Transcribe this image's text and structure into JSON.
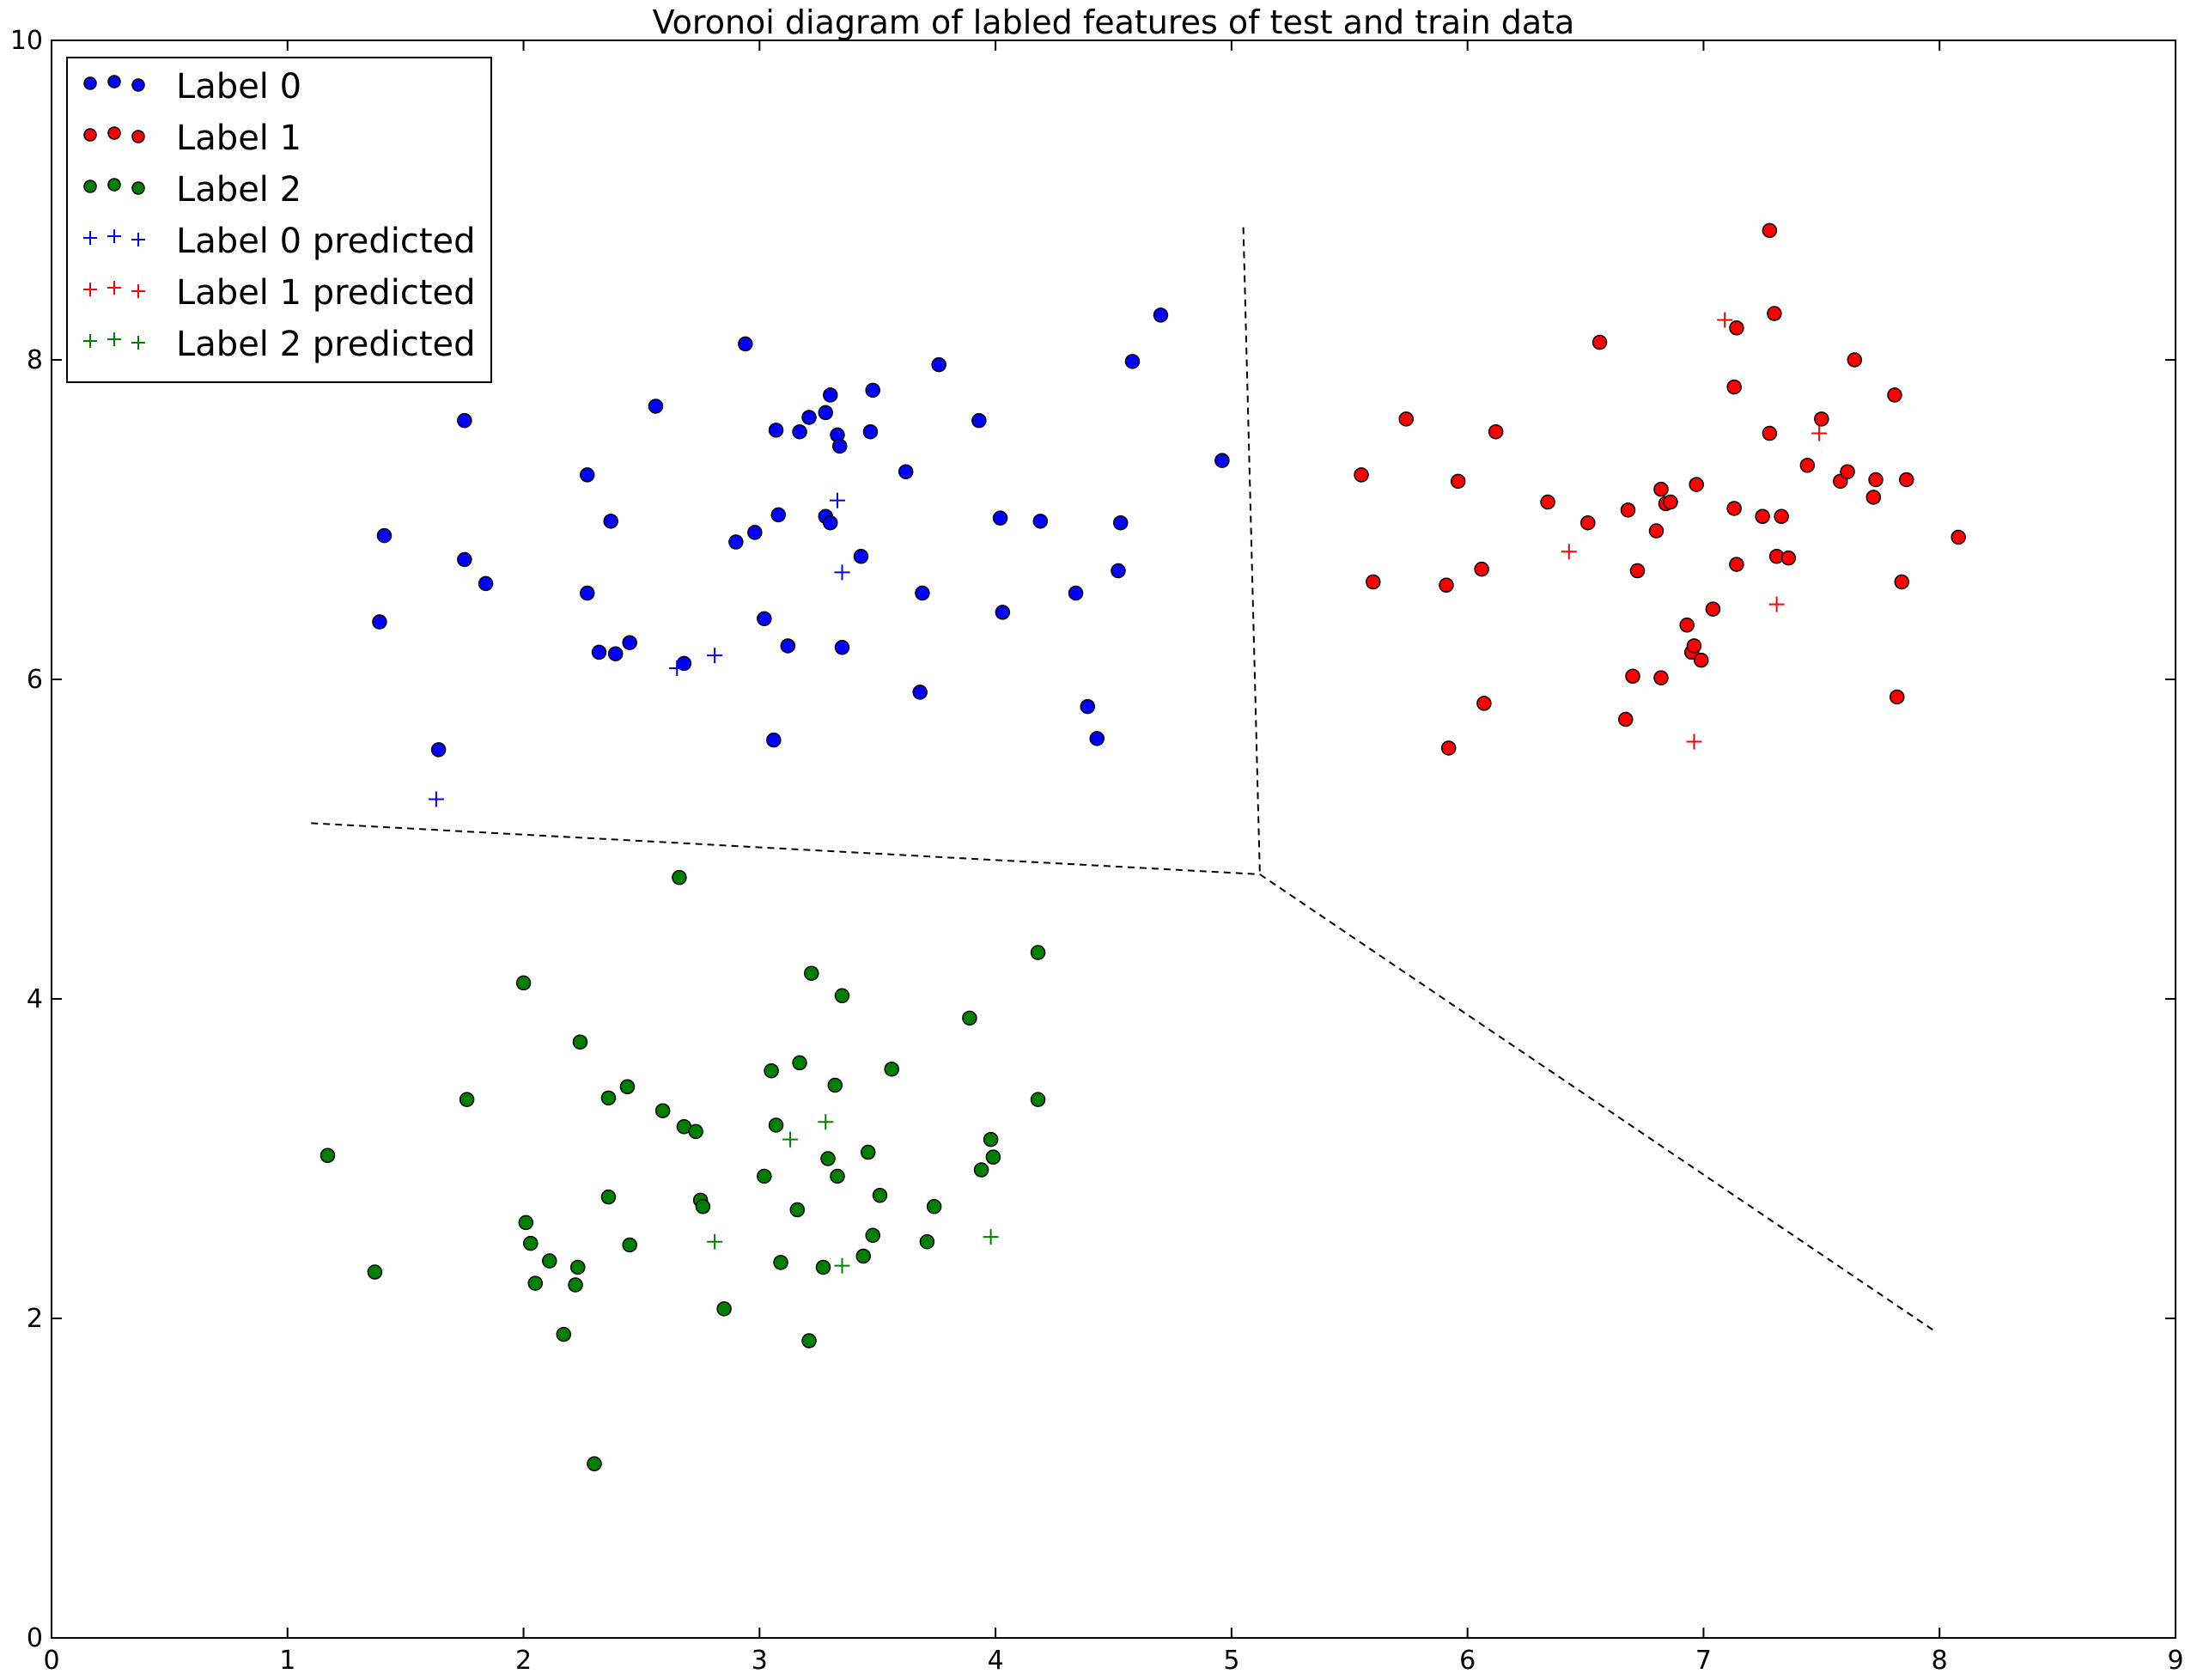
{
  "chart_data": {
    "type": "scatter",
    "title": "Voronoi diagram of labled features of test and train data",
    "xlabel": "",
    "ylabel": "",
    "xlim": [
      0,
      9
    ],
    "ylim": [
      0,
      10
    ],
    "xticks": [
      "0",
      "1",
      "2",
      "3",
      "4",
      "5",
      "6",
      "7",
      "8",
      "9"
    ],
    "yticks": [
      "0",
      "2",
      "4",
      "6",
      "8",
      "10"
    ],
    "grid": false,
    "legend_position": "top-left",
    "series": [
      {
        "name": "Label 0",
        "marker": "circle",
        "color": "#0000ff",
        "points": [
          [
            1.39,
            6.36
          ],
          [
            1.41,
            6.9
          ],
          [
            1.64,
            5.56
          ],
          [
            1.75,
            7.62
          ],
          [
            1.75,
            6.75
          ],
          [
            1.84,
            6.6
          ],
          [
            2.27,
            7.28
          ],
          [
            2.27,
            6.54
          ],
          [
            2.32,
            6.17
          ],
          [
            2.37,
            6.99
          ],
          [
            2.39,
            6.16
          ],
          [
            2.45,
            6.23
          ],
          [
            2.56,
            7.71
          ],
          [
            2.68,
            6.1
          ],
          [
            2.9,
            6.86
          ],
          [
            2.94,
            8.1
          ],
          [
            2.98,
            6.92
          ],
          [
            3.02,
            6.38
          ],
          [
            3.06,
            5.62
          ],
          [
            3.07,
            7.56
          ],
          [
            3.08,
            7.03
          ],
          [
            3.12,
            6.21
          ],
          [
            3.17,
            7.55
          ],
          [
            3.21,
            7.64
          ],
          [
            3.28,
            7.67
          ],
          [
            3.28,
            7.02
          ],
          [
            3.3,
            7.78
          ],
          [
            3.3,
            6.98
          ],
          [
            3.33,
            7.53
          ],
          [
            3.34,
            7.46
          ],
          [
            3.35,
            6.2
          ],
          [
            3.43,
            6.77
          ],
          [
            3.47,
            7.55
          ],
          [
            3.48,
            7.81
          ],
          [
            3.62,
            7.3
          ],
          [
            3.68,
            5.92
          ],
          [
            3.69,
            6.54
          ],
          [
            3.76,
            7.97
          ],
          [
            3.93,
            7.62
          ],
          [
            4.02,
            7.01
          ],
          [
            4.03,
            6.42
          ],
          [
            4.19,
            6.99
          ],
          [
            4.34,
            6.54
          ],
          [
            4.39,
            5.83
          ],
          [
            4.43,
            5.63
          ],
          [
            4.52,
            6.68
          ],
          [
            4.53,
            6.98
          ],
          [
            4.58,
            7.99
          ],
          [
            4.7,
            8.28
          ],
          [
            4.96,
            7.37
          ]
        ]
      },
      {
        "name": "Label 1",
        "marker": "circle",
        "color": "#ff0000",
        "points": [
          [
            5.55,
            7.28
          ],
          [
            5.6,
            6.61
          ],
          [
            5.74,
            7.63
          ],
          [
            5.91,
            6.59
          ],
          [
            5.92,
            5.57
          ],
          [
            5.96,
            7.24
          ],
          [
            6.06,
            6.69
          ],
          [
            6.07,
            5.85
          ],
          [
            6.12,
            7.55
          ],
          [
            6.34,
            7.11
          ],
          [
            6.51,
            6.98
          ],
          [
            6.56,
            8.11
          ],
          [
            6.67,
            5.75
          ],
          [
            6.68,
            7.06
          ],
          [
            6.7,
            6.02
          ],
          [
            6.72,
            6.68
          ],
          [
            6.8,
            6.93
          ],
          [
            6.82,
            7.19
          ],
          [
            6.82,
            6.01
          ],
          [
            6.84,
            7.1
          ],
          [
            6.86,
            7.11
          ],
          [
            6.93,
            6.34
          ],
          [
            6.95,
            6.17
          ],
          [
            6.96,
            6.21
          ],
          [
            6.97,
            7.22
          ],
          [
            6.99,
            6.12
          ],
          [
            7.04,
            6.44
          ],
          [
            7.13,
            7.83
          ],
          [
            7.13,
            7.07
          ],
          [
            7.14,
            6.72
          ],
          [
            7.14,
            8.2
          ],
          [
            7.25,
            7.02
          ],
          [
            7.28,
            8.81
          ],
          [
            7.28,
            7.54
          ],
          [
            7.3,
            8.29
          ],
          [
            7.31,
            6.77
          ],
          [
            7.33,
            7.02
          ],
          [
            7.36,
            6.76
          ],
          [
            7.44,
            7.34
          ],
          [
            7.5,
            7.63
          ],
          [
            7.58,
            7.24
          ],
          [
            7.61,
            7.3
          ],
          [
            7.64,
            8.0
          ],
          [
            7.72,
            7.14
          ],
          [
            7.73,
            7.25
          ],
          [
            7.81,
            7.78
          ],
          [
            7.82,
            5.89
          ],
          [
            7.84,
            6.61
          ],
          [
            7.86,
            7.25
          ],
          [
            8.08,
            6.89
          ]
        ]
      },
      {
        "name": "Label 2",
        "marker": "circle",
        "color": "#008000",
        "points": [
          [
            1.17,
            3.02
          ],
          [
            1.37,
            2.29
          ],
          [
            1.76,
            3.37
          ],
          [
            2.0,
            4.1
          ],
          [
            2.01,
            2.6
          ],
          [
            2.03,
            2.47
          ],
          [
            2.05,
            2.22
          ],
          [
            2.11,
            2.36
          ],
          [
            2.17,
            1.9
          ],
          [
            2.22,
            2.21
          ],
          [
            2.23,
            2.32
          ],
          [
            2.24,
            3.73
          ],
          [
            2.3,
            1.09
          ],
          [
            2.36,
            3.38
          ],
          [
            2.36,
            2.76
          ],
          [
            2.44,
            3.45
          ],
          [
            2.45,
            2.46
          ],
          [
            2.59,
            3.3
          ],
          [
            2.66,
            4.76
          ],
          [
            2.68,
            3.2
          ],
          [
            2.73,
            3.17
          ],
          [
            2.75,
            2.74
          ],
          [
            2.76,
            2.7
          ],
          [
            2.85,
            2.06
          ],
          [
            3.02,
            2.89
          ],
          [
            3.05,
            3.55
          ],
          [
            3.07,
            3.21
          ],
          [
            3.09,
            2.35
          ],
          [
            3.16,
            2.68
          ],
          [
            3.17,
            3.6
          ],
          [
            3.21,
            1.86
          ],
          [
            3.22,
            4.16
          ],
          [
            3.27,
            2.32
          ],
          [
            3.29,
            3.0
          ],
          [
            3.32,
            3.46
          ],
          [
            3.33,
            2.89
          ],
          [
            3.35,
            4.02
          ],
          [
            3.44,
            2.39
          ],
          [
            3.46,
            3.04
          ],
          [
            3.48,
            2.52
          ],
          [
            3.51,
            2.77
          ],
          [
            3.56,
            3.56
          ],
          [
            3.71,
            2.48
          ],
          [
            3.74,
            2.7
          ],
          [
            3.89,
            3.88
          ],
          [
            3.94,
            2.93
          ],
          [
            3.98,
            3.12
          ],
          [
            3.99,
            3.01
          ],
          [
            4.18,
            3.37
          ],
          [
            4.18,
            4.29
          ]
        ]
      },
      {
        "name": "Label 0 predicted",
        "marker": "plus",
        "color": "#0000ff",
        "points": [
          [
            1.63,
            5.25
          ],
          [
            2.65,
            6.07
          ],
          [
            2.81,
            6.15
          ],
          [
            3.33,
            7.12
          ],
          [
            3.35,
            6.67
          ]
        ]
      },
      {
        "name": "Label 1 predicted",
        "marker": "plus",
        "color": "#ff0000",
        "points": [
          [
            6.43,
            6.8
          ],
          [
            6.96,
            5.61
          ],
          [
            7.09,
            8.25
          ],
          [
            7.31,
            6.47
          ],
          [
            7.49,
            7.54
          ]
        ]
      },
      {
        "name": "Label 2 predicted",
        "marker": "plus",
        "color": "#008000",
        "points": [
          [
            2.81,
            2.48
          ],
          [
            3.13,
            3.12
          ],
          [
            3.28,
            3.23
          ],
          [
            3.35,
            2.33
          ],
          [
            3.98,
            2.51
          ]
        ]
      }
    ],
    "voronoi_edges": [
      [
        [
          1.1,
          5.1
        ],
        [
          5.12,
          4.78
        ]
      ],
      [
        [
          5.05,
          8.83
        ],
        [
          5.12,
          4.78
        ]
      ],
      [
        [
          5.12,
          4.78
        ],
        [
          7.98,
          1.92
        ]
      ]
    ]
  }
}
